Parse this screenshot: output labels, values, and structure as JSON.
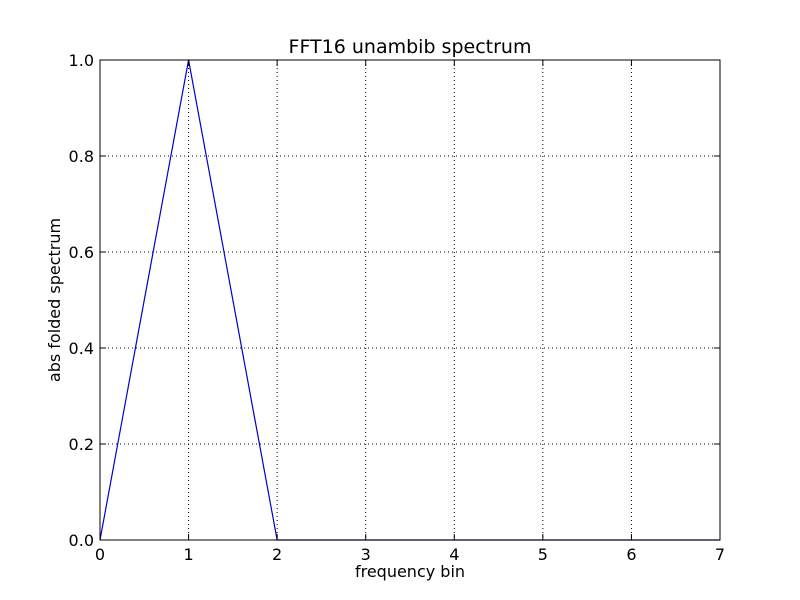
{
  "chart_data": {
    "type": "line",
    "title": "FFT16 unambib spectrum",
    "xlabel": "frequency bin",
    "ylabel": "abs folded spectrum",
    "xlim": [
      0,
      7
    ],
    "ylim": [
      0,
      1.0
    ],
    "xticks": [
      0,
      1,
      2,
      3,
      4,
      5,
      6,
      7
    ],
    "xtick_labels": [
      "0",
      "1",
      "2",
      "3",
      "4",
      "5",
      "6",
      "7"
    ],
    "yticks": [
      0,
      0.2,
      0.4,
      0.6,
      0.8,
      1.0
    ],
    "ytick_labels": [
      "0.0",
      "0.2",
      "0.4",
      "0.6",
      "0.8",
      "1.0"
    ],
    "grid": true,
    "series": [
      {
        "x": [
          0,
          1,
          2,
          3,
          4,
          5,
          6,
          7
        ],
        "y": [
          0,
          1.0,
          0,
          0,
          0,
          0,
          0,
          0
        ],
        "color": "#0000cc"
      }
    ]
  }
}
